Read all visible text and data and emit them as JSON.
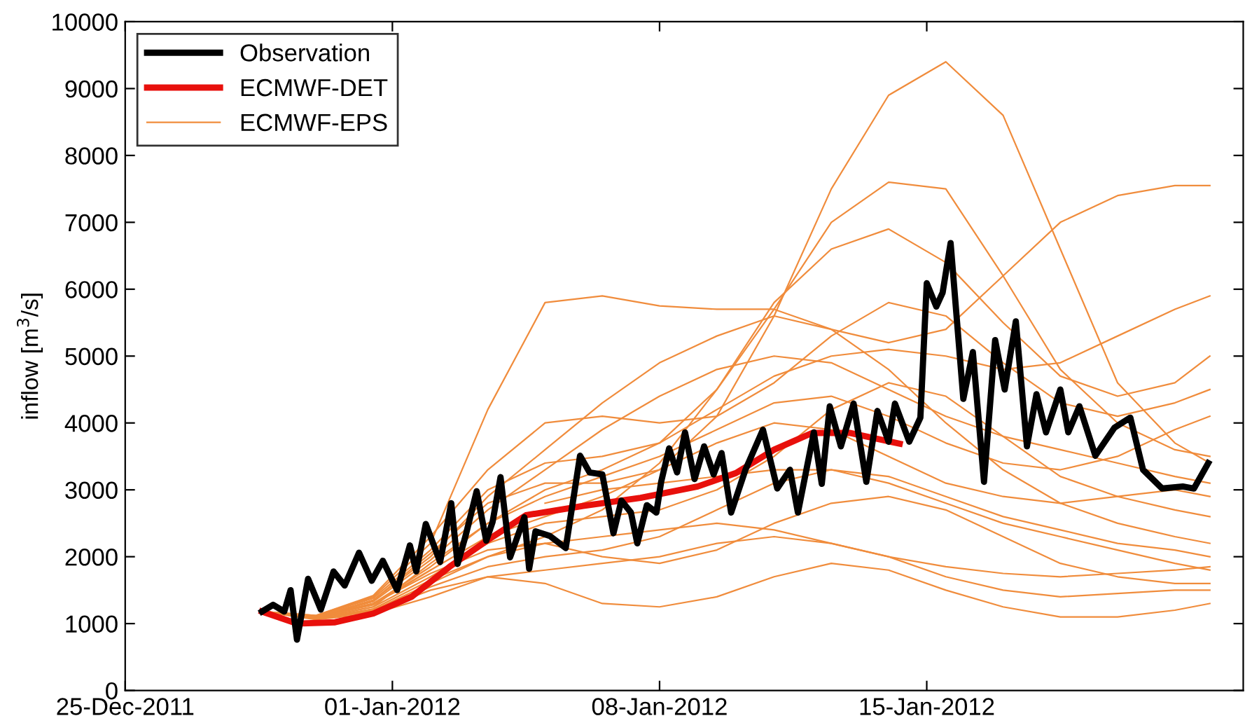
{
  "chart_data": {
    "type": "line",
    "ylabel": "inflow [m$^{3}$/s]",
    "xlim": [
      "2011-12-25",
      "2012-01-23T07:00"
    ],
    "xticks": [
      {
        "value": "2011-12-25",
        "label": "25-Dec-2011"
      },
      {
        "value": "2012-01-01",
        "label": "01-Jan-2012"
      },
      {
        "value": "2012-01-08",
        "label": "08-Jan-2012"
      },
      {
        "value": "2012-01-15",
        "label": "15-Jan-2012"
      }
    ],
    "ylim": [
      0,
      10000
    ],
    "yticks": [
      0,
      1000,
      2000,
      3000,
      4000,
      5000,
      6000,
      7000,
      8000,
      9000,
      10000
    ],
    "grid": false,
    "legend": "top left",
    "line_style": "solid",
    "marker": "none",
    "x": [
      "2011-12-28T14:00",
      "2011-12-30",
      "2011-12-31T12:00",
      "2012-01-02",
      "2012-01-03T12:00",
      "2012-01-05",
      "2012-01-06T12:00",
      "2012-01-08",
      "2012-01-09T12:00",
      "2012-01-11",
      "2012-01-12T12:00",
      "2012-01-14",
      "2012-01-15T12:00",
      "2012-01-17",
      "2012-01-18T12:00",
      "2012-01-20",
      "2012-01-21T12:00",
      "2012-01-22T10:00"
    ],
    "series": [
      {
        "name": "ECMWF-EPS",
        "color": "#f08c3c",
        "values": [
          1180,
          1100,
          1300,
          1800,
          2300,
          2600,
          2900,
          3300,
          4100,
          5600,
          7500,
          8900,
          9400,
          8600,
          6600,
          4600,
          3700,
          3400
        ]
      },
      {
        "color": "#f08c3c",
        "values": [
          1180,
          1120,
          1400,
          2200,
          4200,
          5800,
          5900,
          5750,
          5700,
          5700,
          5400,
          5200,
          5400,
          6200,
          7000,
          7400,
          7550,
          7550
        ]
      },
      {
        "color": "#f08c3c",
        "values": [
          1180,
          1080,
          1250,
          1900,
          2500,
          3000,
          3300,
          3700,
          4500,
          5700,
          7000,
          7600,
          7500,
          6200,
          4800,
          4000,
          3600,
          3500
        ]
      },
      {
        "color": "#f08c3c",
        "values": [
          1180,
          1090,
          1350,
          2000,
          2900,
          3600,
          4300,
          4900,
          5300,
          5600,
          5400,
          4800,
          4000,
          3300,
          2800,
          2500,
          2300,
          2200
        ]
      },
      {
        "color": "#f08c3c",
        "values": [
          1180,
          1070,
          1200,
          1600,
          2000,
          2300,
          2700,
          3400,
          4500,
          5800,
          6600,
          6900,
          6400,
          5500,
          4700,
          4400,
          4600,
          5000
        ]
      },
      {
        "color": "#f08c3c",
        "values": [
          1180,
          1060,
          1150,
          1400,
          1700,
          1600,
          1300,
          1250,
          1400,
          1700,
          1900,
          1800,
          1500,
          1250,
          1100,
          1100,
          1200,
          1300
        ]
      },
      {
        "color": "#f08c3c",
        "values": [
          1180,
          1100,
          1300,
          1750,
          2100,
          2200,
          2000,
          1900,
          2100,
          2500,
          2800,
          2900,
          2700,
          2300,
          1900,
          1700,
          1600,
          1600
        ]
      },
      {
        "color": "#f08c3c",
        "values": [
          1180,
          1110,
          1380,
          2100,
          3000,
          3400,
          3500,
          3700,
          4200,
          4700,
          5000,
          5100,
          5000,
          4800,
          4900,
          5300,
          5700,
          5900
        ]
      },
      {
        "color": "#f08c3c",
        "values": [
          1180,
          1090,
          1300,
          1850,
          2500,
          2900,
          3200,
          3500,
          3900,
          4300,
          4400,
          4100,
          3700,
          3400,
          3300,
          3500,
          3900,
          4100
        ]
      },
      {
        "color": "#f08c3c",
        "values": [
          1180,
          1080,
          1250,
          1700,
          2200,
          2500,
          2600,
          2700,
          3000,
          3500,
          4200,
          4600,
          4400,
          3800,
          3200,
          2900,
          2700,
          2600
        ]
      },
      {
        "color": "#f08c3c",
        "values": [
          1180,
          1070,
          1220,
          1650,
          2000,
          2200,
          2300,
          2400,
          2500,
          2400,
          2200,
          2000,
          1850,
          1750,
          1700,
          1750,
          1800,
          1850
        ]
      },
      {
        "color": "#f08c3c",
        "values": [
          1180,
          1100,
          1330,
          1950,
          2700,
          3300,
          3900,
          4400,
          4800,
          5000,
          4900,
          4500,
          4100,
          3800,
          3600,
          3400,
          3200,
          3100
        ]
      },
      {
        "color": "#f08c3c",
        "values": [
          1180,
          1080,
          1200,
          1550,
          1850,
          2000,
          2100,
          2300,
          2700,
          3100,
          3300,
          3200,
          2900,
          2600,
          2400,
          2200,
          2100,
          2000
        ]
      },
      {
        "color": "#f08c3c",
        "values": [
          1180,
          1120,
          1420,
          2300,
          3300,
          4000,
          4100,
          4000,
          4100,
          4600,
          5300,
          5800,
          5600,
          4900,
          4300,
          4100,
          4300,
          4500
        ]
      },
      {
        "color": "#f08c3c",
        "values": [
          1180,
          1090,
          1280,
          1800,
          null,
          2800,
          3000,
          3100,
          3200,
          3300,
          3300,
          3100,
          2800,
          2500,
          2300,
          2100,
          1900,
          1800
        ]
      },
      {
        "color": "#f08c3c",
        "values": [
          1180,
          1100,
          1350,
          2050,
          2800,
          3100,
          3100,
          3300,
          3700,
          4000,
          3900,
          3500,
          3100,
          2900,
          2800,
          2900,
          3000,
          2900
        ]
      },
      {
        "color": "#f08c3c",
        "values": [
          1180,
          1070,
          1180,
          1500,
          1700,
          1800,
          1900,
          2000,
          2200,
          2300,
          2200,
          2000,
          1700,
          1500,
          1400,
          1450,
          1500,
          1500
        ]
      },
      {
        "name": "ECMWF-DET",
        "color": "#e8100c",
        "x": [
          "2011-12-28T14:00",
          "2011-12-29T12:00",
          "2011-12-30T12:00",
          "2011-12-31T12:00",
          "2012-01-01T12:00",
          "2012-01-02T12:00",
          "2012-01-03T12:00",
          "2012-01-04T12:00",
          "2012-01-06",
          "2012-01-07T12:00",
          "2012-01-09",
          "2012-01-10",
          "2012-01-11",
          "2012-01-12",
          "2012-01-13",
          "2012-01-14T07:00"
        ],
        "values": [
          1180,
          1000,
          1020,
          1150,
          1400,
          1850,
          2250,
          2620,
          2760,
          2880,
          3050,
          3250,
          3600,
          3850,
          3850,
          3690
        ]
      },
      {
        "name": "Observation",
        "color": "#000000",
        "x": [
          "2011-12-28T14:00",
          "2011-12-28T21:00",
          "2011-12-29T04:00",
          "2011-12-29T08:00",
          "2011-12-29T12:00",
          "2011-12-29T19:00",
          "2011-12-30T03:00",
          "2011-12-30T11:00",
          "2011-12-30T18:00",
          "2011-12-31T03:00",
          "2011-12-31T11:00",
          "2011-12-31T18:00",
          "2012-01-01T03:00",
          "2012-01-01T11:00",
          "2012-01-01T15:00",
          "2012-01-01T21:00",
          "2012-01-02T06:00",
          "2012-01-02T13:00",
          "2012-01-02T17:00",
          "2012-01-02T22:00",
          "2012-01-03T05:00",
          "2012-01-03T11:00",
          "2012-01-03T15:00",
          "2012-01-03T20:00",
          "2012-01-04T02:00",
          "2012-01-04T11:00",
          "2012-01-04T14:00",
          "2012-01-04T18:00",
          "2012-01-05T03:00",
          "2012-01-05T13:00",
          "2012-01-05T22:00",
          "2012-01-06T04:00",
          "2012-01-06T12:00",
          "2012-01-06T19:00",
          "2012-01-07T00:00",
          "2012-01-07T06:00",
          "2012-01-07T10:00",
          "2012-01-07T16:00",
          "2012-01-07T22:00",
          "2012-01-08T01:00",
          "2012-01-08T06:00",
          "2012-01-08T11:00",
          "2012-01-08T16:00",
          "2012-01-08T22:00",
          "2012-01-09T04:00",
          "2012-01-09T10:00",
          "2012-01-09T15:00",
          "2012-01-09T21:00",
          "2012-01-10T06:00",
          "2012-01-10T17:00",
          "2012-01-11T02:00",
          "2012-01-11T10:00",
          "2012-01-11T15:00",
          "2012-01-12T01:00",
          "2012-01-12T06:00",
          "2012-01-12T11:00",
          "2012-01-12T18:00",
          "2012-01-13T02:00",
          "2012-01-13T10:00",
          "2012-01-13T17:00",
          "2012-01-14T00:00",
          "2012-01-14T04:00",
          "2012-01-14T13:00",
          "2012-01-14T20:00",
          "2012-01-15T00:00",
          "2012-01-15T06:00",
          "2012-01-15T10:00",
          "2012-01-15T15:00",
          "2012-01-15T23:00",
          "2012-01-16T05:00",
          "2012-01-16T12:00",
          "2012-01-16T19:00",
          "2012-01-17T01:00",
          "2012-01-17T08:00",
          "2012-01-17T15:00",
          "2012-01-17T21:00",
          "2012-01-18T03:00",
          "2012-01-18T12:00",
          "2012-01-18T17:00",
          "2012-01-19T00:00",
          "2012-01-19T10:00",
          "2012-01-19T22:00",
          "2012-01-20T08:00",
          "2012-01-20T16:00",
          "2012-01-21T04:00",
          "2012-01-21T17:00",
          "2012-01-22T00:00",
          "2012-01-22T09:00"
        ],
        "values": [
          1180,
          1280,
          1180,
          1500,
          760,
          1670,
          1210,
          1780,
          1570,
          2060,
          1640,
          1940,
          1500,
          2170,
          1780,
          2490,
          1920,
          2800,
          1890,
          2310,
          2980,
          2240,
          2520,
          3190,
          1990,
          2590,
          1820,
          2380,
          2310,
          2130,
          3510,
          3260,
          3230,
          2350,
          2840,
          2660,
          2200,
          2770,
          2660,
          3120,
          3620,
          3260,
          3860,
          3160,
          3650,
          3230,
          3550,
          2660,
          3300,
          3900,
          3020,
          3300,
          2660,
          3860,
          3090,
          4250,
          3650,
          4290,
          3120,
          4180,
          3720,
          4290,
          3720,
          4080,
          6090,
          5740,
          5950,
          6690,
          4360,
          5060,
          3120,
          5240,
          4500,
          5520,
          3650,
          4430,
          3860,
          4500,
          3860,
          4250,
          3510,
          3930,
          4080,
          3300,
          3020,
          3050,
          3020,
          3400
        ]
      }
    ]
  }
}
